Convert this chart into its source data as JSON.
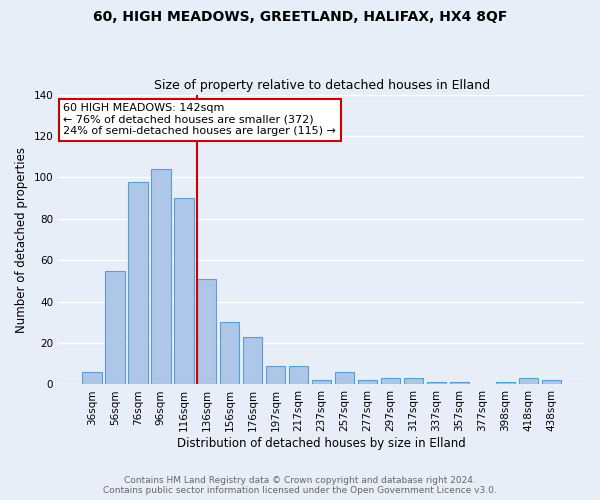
{
  "title": "60, HIGH MEADOWS, GREETLAND, HALIFAX, HX4 8QF",
  "subtitle": "Size of property relative to detached houses in Elland",
  "xlabel": "Distribution of detached houses by size in Elland",
  "ylabel": "Number of detached properties",
  "categories": [
    "36sqm",
    "56sqm",
    "76sqm",
    "96sqm",
    "116sqm",
    "136sqm",
    "156sqm",
    "176sqm",
    "197sqm",
    "217sqm",
    "237sqm",
    "257sqm",
    "277sqm",
    "297sqm",
    "317sqm",
    "337sqm",
    "357sqm",
    "377sqm",
    "398sqm",
    "418sqm",
    "438sqm"
  ],
  "values": [
    6,
    55,
    98,
    104,
    90,
    51,
    30,
    23,
    9,
    9,
    2,
    6,
    2,
    3,
    3,
    1,
    1,
    0,
    1,
    3,
    2
  ],
  "bar_color": "#aec6e8",
  "bar_edge_color": "#5a9fd4",
  "vline_index": 5,
  "vline_color": "#cc0000",
  "annotation_text": "60 HIGH MEADOWS: 142sqm\n← 76% of detached houses are smaller (372)\n24% of semi-detached houses are larger (115) →",
  "annotation_box_color": "#cc0000",
  "ylim": [
    0,
    140
  ],
  "yticks": [
    0,
    20,
    40,
    60,
    80,
    100,
    120,
    140
  ],
  "bg_color": "#e8eef7",
  "footer": "Contains HM Land Registry data © Crown copyright and database right 2024.\nContains public sector information licensed under the Open Government Licence v3.0.",
  "title_fontsize": 10,
  "subtitle_fontsize": 9,
  "xlabel_fontsize": 8.5,
  "ylabel_fontsize": 8.5,
  "footer_fontsize": 6.5,
  "tick_fontsize": 7.5,
  "annotation_fontsize": 8
}
